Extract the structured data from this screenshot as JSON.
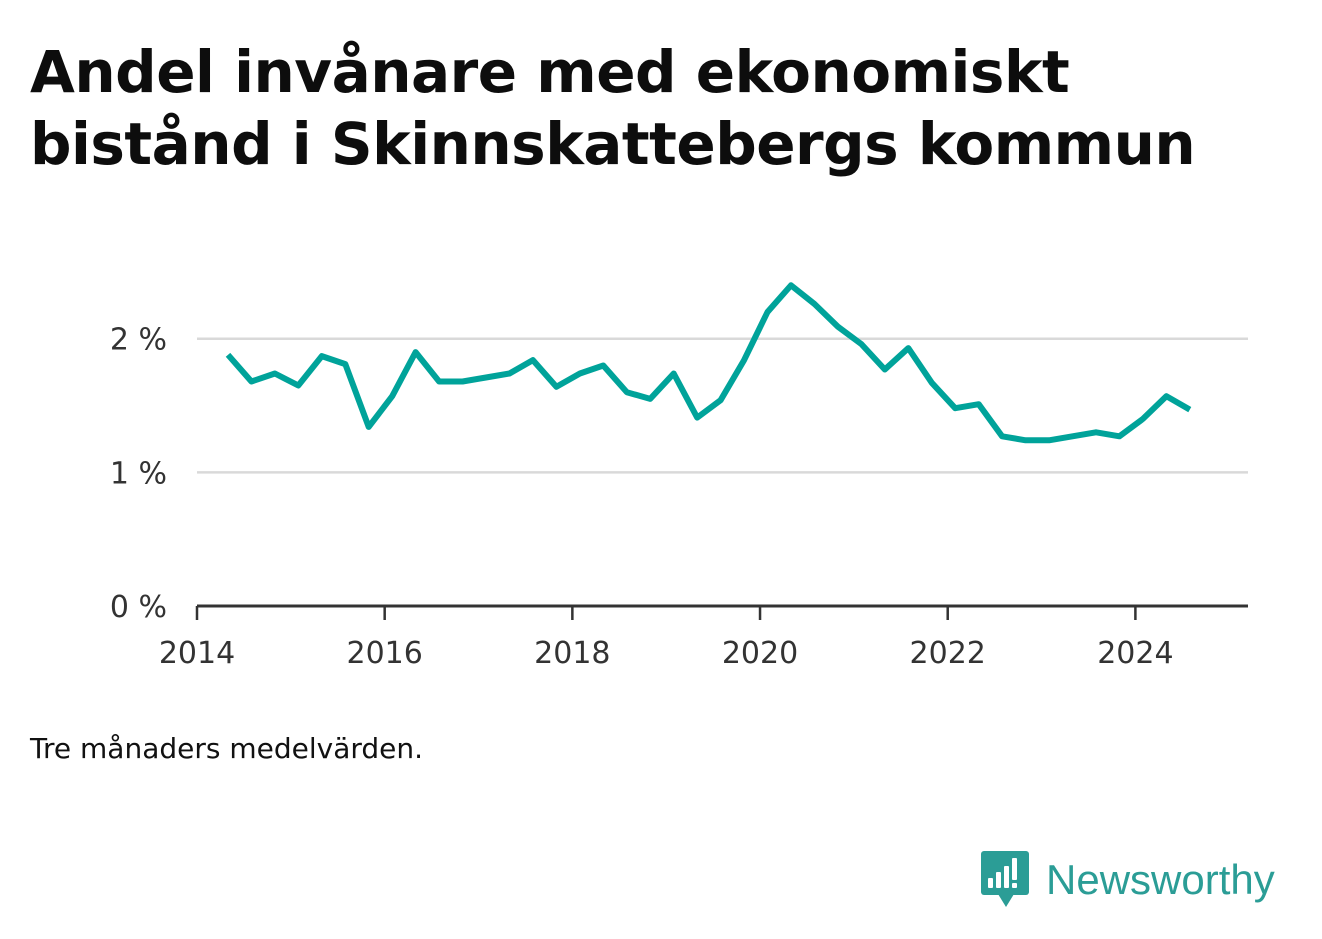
{
  "title": "Andel invånare med ekonomiskt bistånd i Skinnskattebergs kommun",
  "note": "Tre månaders medelvärden.",
  "brand": {
    "name": "Newsworthy",
    "icon": "bar-chart-bubble-icon",
    "color": "#2b9d96"
  },
  "colors": {
    "line": "#00a39a",
    "grid": "#d9d9d9",
    "axis": "#333333"
  },
  "chart_data": {
    "type": "line",
    "title": "Andel invånare med ekonomiskt bistånd i Skinnskattebergs kommun",
    "xlabel": "",
    "ylabel": "",
    "xlim": [
      2014.0,
      2025.2
    ],
    "ylim": [
      0,
      2.2
    ],
    "x_ticks": [
      2014,
      2016,
      2018,
      2020,
      2022,
      2024
    ],
    "x_tick_labels": [
      "2014",
      "2016",
      "2018",
      "2020",
      "2022",
      "2024"
    ],
    "y_ticks": [
      0,
      1,
      2
    ],
    "y_tick_labels": [
      "0 %",
      "1 %",
      "2 %"
    ],
    "grid": true,
    "legend": "none",
    "series": [
      {
        "x": [
          2014.33,
          2014.58,
          2014.83,
          2015.08,
          2015.33,
          2015.58,
          2015.83,
          2016.08,
          2016.33,
          2016.58,
          2016.83,
          2017.08,
          2017.33,
          2017.58,
          2017.83,
          2018.08,
          2018.33,
          2018.58,
          2018.83,
          2019.08,
          2019.33,
          2019.58,
          2019.83,
          2020.08,
          2020.33,
          2020.58,
          2020.83,
          2021.08,
          2021.33,
          2021.58,
          2021.83,
          2022.08,
          2022.33,
          2022.58,
          2022.83,
          2023.08,
          2023.33,
          2023.58,
          2023.83,
          2024.08,
          2024.33,
          2024.58
        ],
        "values": [
          1.88,
          1.68,
          1.74,
          1.65,
          1.87,
          1.81,
          1.34,
          1.57,
          1.9,
          1.68,
          1.68,
          1.71,
          1.74,
          1.84,
          1.64,
          1.74,
          1.8,
          1.6,
          1.55,
          1.74,
          1.41,
          1.54,
          1.84,
          2.2,
          2.4,
          2.26,
          2.09,
          1.96,
          1.77,
          1.93,
          1.67,
          1.48,
          1.51,
          1.27,
          1.24,
          1.24,
          1.27,
          1.3,
          1.27,
          1.4,
          1.57,
          1.47
        ]
      }
    ]
  }
}
